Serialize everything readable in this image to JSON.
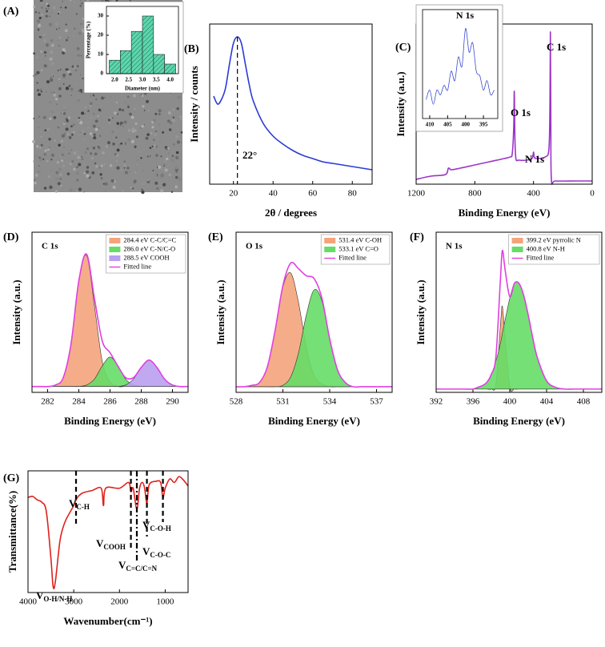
{
  "chart_data": [
    {
      "type": "histogram",
      "panel": "(A)",
      "xlabel": "Diameter (nm)",
      "ylabel": "Percentage (%)",
      "bins": [
        1.8,
        2.2,
        2.6,
        3.0,
        3.4,
        3.8,
        4.2
      ],
      "values": [
        7,
        12,
        22,
        30,
        10,
        5
      ],
      "color": "#5ed6ad",
      "xlim": [
        1.7,
        4.3
      ],
      "ylim": [
        0,
        35
      ],
      "xticks": [
        {
          "value": 2,
          "label": "2.0"
        },
        2.5,
        {
          "value": 3,
          "label": "3.0"
        },
        3.5,
        {
          "value": 4,
          "label": "4.0"
        }
      ],
      "yticks": [
        0,
        10,
        20,
        30
      ]
    },
    {
      "type": "line",
      "panel": "(B)",
      "xlabel": "2θ / degrees",
      "ylabel": "Intensity / counts",
      "x": [
        10,
        12,
        14,
        16,
        18,
        20,
        22,
        24,
        26,
        28,
        30,
        35,
        40,
        45,
        50,
        55,
        60,
        65,
        70,
        75,
        80,
        85,
        90
      ],
      "series": [
        {
          "color": "#2a3bd4",
          "values": [
            0.55,
            0.5,
            0.53,
            0.6,
            0.75,
            0.88,
            0.92,
            0.88,
            0.75,
            0.62,
            0.52,
            0.38,
            0.3,
            0.25,
            0.21,
            0.18,
            0.16,
            0.14,
            0.13,
            0.12,
            0.11,
            0.1,
            0.09
          ]
        }
      ],
      "xlim": [
        8,
        90
      ],
      "ylim": [
        0,
        1
      ],
      "xticks": [
        20,
        40,
        60,
        80
      ],
      "markers": [
        22
      ],
      "annotations": [
        {
          "text": "22°"
        }
      ]
    },
    {
      "type": "line",
      "panel": "(C)",
      "xlabel": "Binding Energy (eV)",
      "ylabel": "Intensity (a.u.)",
      "x": [
        1200,
        1100,
        1000,
        980,
        960,
        900,
        800,
        700,
        600,
        560,
        545,
        535,
        531,
        527,
        520,
        500,
        450,
        410,
        400,
        395,
        380,
        320,
        295,
        288,
        285,
        282,
        278,
        250,
        100,
        0
      ],
      "series": [
        {
          "color": "#9b35c9",
          "values": [
            0.03,
            0.05,
            0.06,
            0.1,
            0.09,
            0.1,
            0.12,
            0.14,
            0.16,
            0.17,
            0.19,
            0.35,
            0.58,
            0.3,
            0.16,
            0.15,
            0.15,
            0.16,
            0.2,
            0.17,
            0.16,
            0.17,
            0.22,
            0.5,
            0.95,
            0.4,
            0.03,
            0.02,
            0.02,
            0.02
          ]
        }
      ],
      "xlim": [
        1200,
        0
      ],
      "ylim": [
        0,
        1
      ],
      "xticks": [
        1200,
        800,
        400,
        0
      ],
      "annotations": [
        {
          "text": "C 1s"
        },
        {
          "text": "O 1s"
        },
        {
          "text": "N 1s"
        }
      ]
    },
    {
      "type": "line",
      "title": "N 1s",
      "x": [
        411,
        410,
        409,
        408,
        407,
        406,
        405,
        404,
        403,
        402,
        401,
        400,
        399,
        398,
        397,
        396,
        395,
        394,
        393,
        392
      ],
      "series": [
        {
          "color": "#3b4bd0",
          "values": [
            0.2,
            0.3,
            0.15,
            0.3,
            0.25,
            0.35,
            0.3,
            0.5,
            0.4,
            0.65,
            0.55,
            0.95,
            0.7,
            0.8,
            0.5,
            0.45,
            0.3,
            0.4,
            0.25,
            0.3
          ]
        }
      ],
      "xlim": [
        412,
        391
      ],
      "ylim": [
        0,
        1.15
      ],
      "xticks": [
        410,
        405,
        400,
        395
      ]
    },
    {
      "type": "area",
      "panel": "(D)",
      "title": "C 1s",
      "xlabel": "Binding Energy (eV)",
      "ylabel": "Intensity (a.u.)",
      "x": [
        281,
        281.5,
        282,
        282.5,
        283,
        283.5,
        284,
        284.5,
        285,
        285.5,
        286,
        286.5,
        287,
        287.5,
        288,
        288.5,
        289,
        289.5,
        290,
        290.5,
        291
      ],
      "series": [
        {
          "name": "284.4 eV C-C/C=C",
          "color": "#f4a47c",
          "fill": true,
          "values": [
            0,
            0,
            0,
            0.01,
            0.06,
            0.29,
            0.72,
            0.89,
            0.55,
            0.17,
            0.03,
            0,
            0,
            0,
            0,
            0,
            0,
            0,
            0,
            0,
            0
          ]
        },
        {
          "name": "286.0 eV C-N/C-O",
          "color": "#66dd66",
          "fill": true,
          "values": [
            0,
            0,
            0,
            0,
            0,
            0,
            0,
            0.01,
            0.05,
            0.14,
            0.2,
            0.14,
            0.05,
            0.01,
            0,
            0,
            0,
            0,
            0,
            0,
            0
          ]
        },
        {
          "name": "288.5 eV COOH",
          "color": "#b9a0f0",
          "fill": true,
          "values": [
            0,
            0,
            0,
            0,
            0,
            0,
            0,
            0,
            0,
            0,
            0,
            0,
            0.01,
            0.05,
            0.13,
            0.18,
            0.13,
            0.05,
            0.01,
            0,
            0
          ]
        },
        {
          "name": "Fitted line",
          "color": "#e040e0",
          "fill": false,
          "values": [
            0,
            0,
            0,
            0.01,
            0.06,
            0.29,
            0.72,
            0.9,
            0.6,
            0.31,
            0.23,
            0.14,
            0.06,
            0.06,
            0.13,
            0.18,
            0.13,
            0.05,
            0.01,
            0,
            0
          ]
        }
      ],
      "xlim": [
        281,
        291
      ],
      "ylim": [
        -0.04,
        1.05
      ],
      "xticks": [
        282,
        284,
        286,
        288,
        290
      ],
      "legend": "upper right"
    },
    {
      "type": "area",
      "panel": "(E)",
      "title": "O 1s",
      "xlabel": "Binding Energy (eV)",
      "ylabel": "Intensity (a.u.)",
      "x": [
        528,
        528.5,
        529,
        529.5,
        530,
        530.5,
        531,
        531.5,
        532,
        532.5,
        533,
        533.5,
        534,
        534.5,
        535,
        535.5,
        536,
        536.5,
        537,
        537.5,
        538
      ],
      "series": [
        {
          "name": "531.4 eV C-OH",
          "color": "#f4a47c",
          "fill": true,
          "values": [
            0,
            0,
            0.01,
            0.03,
            0.14,
            0.4,
            0.71,
            0.81,
            0.6,
            0.28,
            0.08,
            0.02,
            0,
            0,
            0,
            0,
            0,
            0,
            0,
            0,
            0
          ]
        },
        {
          "name": "533.1 eV C=O",
          "color": "#66dd66",
          "fill": true,
          "values": [
            0,
            0,
            0,
            0,
            0,
            0,
            0.01,
            0.07,
            0.24,
            0.51,
            0.69,
            0.61,
            0.34,
            0.12,
            0.03,
            0,
            0,
            0,
            0,
            0,
            0
          ]
        },
        {
          "name": "Fitted line",
          "color": "#e040e0",
          "fill": false,
          "values": [
            0,
            0,
            0.01,
            0.03,
            0.14,
            0.4,
            0.72,
            0.88,
            0.84,
            0.79,
            0.77,
            0.63,
            0.34,
            0.12,
            0.03,
            0,
            0,
            0,
            0,
            0,
            0
          ]
        }
      ],
      "xlim": [
        528,
        538
      ],
      "ylim": [
        -0.04,
        1.1
      ],
      "xticks": [
        528,
        531,
        534,
        537
      ],
      "legend": "upper right"
    },
    {
      "type": "area",
      "panel": "(F)",
      "title": "N 1s",
      "xlabel": "Binding Energy (eV)",
      "ylabel": "Intensity (a.u.)",
      "x": [
        392,
        393,
        394,
        395,
        396,
        396.5,
        397,
        397.5,
        398,
        398.5,
        399,
        399.2,
        399.5,
        400,
        400.5,
        401,
        401.5,
        402,
        402.5,
        403,
        404,
        405,
        406,
        407,
        408,
        409,
        410
      ],
      "series": [
        {
          "name": "399.2 eV pyrrolic N",
          "color": "#f4a47c",
          "fill": true,
          "values": [
            0,
            0,
            0,
            0,
            0,
            0,
            0,
            0,
            0,
            0.03,
            0.4,
            0.5,
            0.3,
            0.01,
            0,
            0,
            0,
            0,
            0,
            0,
            0,
            0,
            0,
            0,
            0,
            0,
            0
          ]
        },
        {
          "name": "400.8 eV N-H",
          "color": "#66dd66",
          "fill": true,
          "values": [
            0,
            0,
            0,
            0,
            0,
            0.01,
            0.02,
            0.04,
            0.09,
            0.17,
            0.28,
            0.34,
            0.42,
            0.55,
            0.64,
            0.64,
            0.57,
            0.45,
            0.31,
            0.19,
            0.05,
            0.01,
            0,
            0,
            0,
            0,
            0
          ]
        },
        {
          "name": "Fitted line",
          "color": "#e040e0",
          "fill": false,
          "values": [
            0,
            0,
            0,
            0,
            0,
            0.01,
            0.02,
            0.04,
            0.09,
            0.2,
            0.68,
            0.84,
            0.72,
            0.56,
            0.64,
            0.64,
            0.57,
            0.45,
            0.31,
            0.19,
            0.05,
            0.01,
            0,
            0,
            0,
            0,
            0
          ]
        }
      ],
      "xlim": [
        392,
        410
      ],
      "ylim": [
        -0.02,
        0.95
      ],
      "xticks": [
        392,
        396,
        400,
        404,
        408
      ],
      "legend": "upper right"
    },
    {
      "type": "line",
      "panel": "(G)",
      "xlabel": "Wavenumber(cm⁻¹)",
      "ylabel": "Transmittance(%)",
      "x": [
        4000,
        3900,
        3800,
        3700,
        3600,
        3500,
        3450,
        3400,
        3300,
        3200,
        3100,
        3000,
        2950,
        2900,
        2800,
        2600,
        2400,
        2350,
        2300,
        2000,
        1800,
        1750,
        1700,
        1620,
        1560,
        1500,
        1450,
        1400,
        1350,
        1200,
        1100,
        1050,
        1000,
        900,
        800,
        700,
        600,
        500
      ],
      "series": [
        {
          "color": "#e0201b",
          "values": [
            0.82,
            0.83,
            0.8,
            0.78,
            0.7,
            0.3,
            0.05,
            0.1,
            0.45,
            0.6,
            0.68,
            0.75,
            0.8,
            0.83,
            0.86,
            0.88,
            0.9,
            0.75,
            0.9,
            0.9,
            0.95,
            0.87,
            0.9,
            0.72,
            0.9,
            0.95,
            0.9,
            0.77,
            0.93,
            0.96,
            0.95,
            0.82,
            0.9,
            0.98,
            0.95,
            1.0,
            0.97,
            0.92
          ]
        }
      ],
      "xlim": [
        4000,
        500
      ],
      "ylim": [
        0,
        1.05
      ],
      "xticks": [
        4000,
        3000,
        2000,
        1000
      ],
      "markers": [
        2950,
        1750,
        1620,
        1400,
        1050
      ],
      "annotations": [
        {
          "text": "V",
          "sub": "O-H/N-H"
        },
        {
          "text": "V",
          "sub": "C-H"
        },
        {
          "text": "V",
          "sub": "COOH"
        },
        {
          "text": "V",
          "sub": "C=C/C=N"
        },
        {
          "text": "V",
          "sub": "C-O-C"
        },
        {
          "text": "V",
          "sub": "C-O-H"
        }
      ]
    }
  ]
}
